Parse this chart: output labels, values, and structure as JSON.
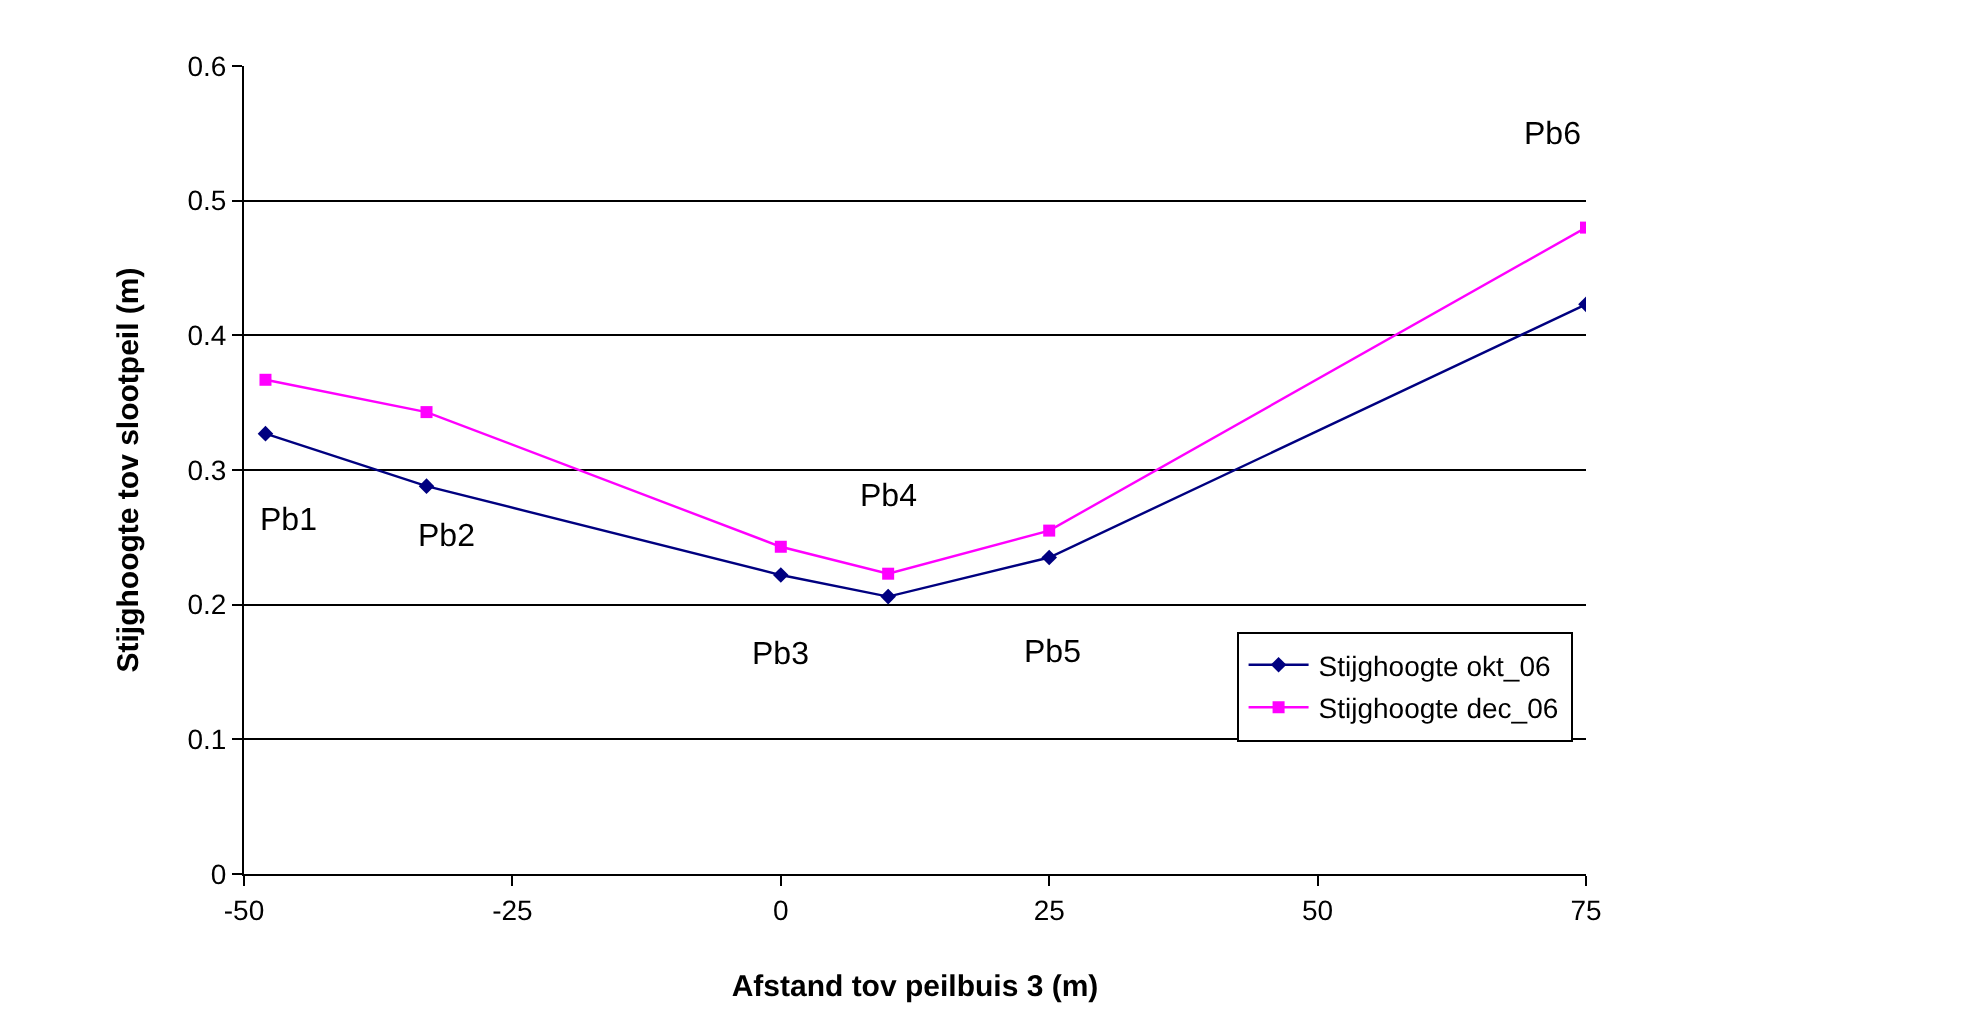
{
  "chart_data": {
    "type": "line",
    "xlabel": "Afstand tov peilbuis 3 (m)",
    "ylabel": "Stijghoogte tov slootpeil (m)",
    "x": [
      -48,
      -33,
      0,
      10,
      25,
      75
    ],
    "series": [
      {
        "name": "Stijghoogte okt_06",
        "color": "#000080",
        "marker": "diamond",
        "values": [
          0.327,
          0.288,
          0.222,
          0.206,
          0.235,
          0.423
        ]
      },
      {
        "name": "Stijghoogte dec_06",
        "color": "#ff00ff",
        "marker": "square",
        "values": [
          0.367,
          0.343,
          0.243,
          0.223,
          0.255,
          0.48
        ]
      }
    ],
    "annotations": [
      {
        "text": "Pb1",
        "x": -48,
        "y": 0.327
      },
      {
        "text": "Pb2",
        "x": -33,
        "y": 0.288
      },
      {
        "text": "Pb3",
        "x": 0,
        "y": 0.222
      },
      {
        "text": "Pb4",
        "x": 10,
        "y": 0.223
      },
      {
        "text": "Pb5",
        "x": 25,
        "y": 0.235
      },
      {
        "text": "Pb6",
        "x": 75,
        "y": 0.48
      }
    ],
    "xlim": [
      -50,
      75
    ],
    "xticks": [
      -50,
      -25,
      0,
      25,
      50,
      75
    ],
    "ylim": [
      0,
      0.6
    ],
    "yticks": [
      0,
      0.1,
      0.2,
      0.3,
      0.4,
      0.5,
      0.6
    ],
    "grid": "y",
    "legend": "bottom right",
    "line_style": "solid"
  }
}
